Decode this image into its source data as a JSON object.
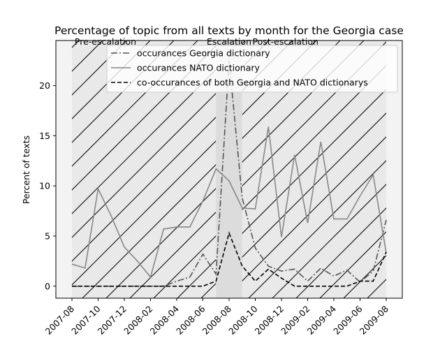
{
  "chart_data": {
    "type": "line",
    "title": "Percentage of topic from all texts by month for the Georgia case",
    "xlabel": "",
    "ylabel": "Percent of texts",
    "ylim": [
      -1.2,
      24.5
    ],
    "yticks": [
      0,
      5,
      10,
      15,
      20
    ],
    "xticks": [
      "2007-08",
      "2007-10",
      "2007-12",
      "2008-02",
      "2008-04",
      "2008-06",
      "2008-08",
      "2008-10",
      "2008-12",
      "2009-02",
      "2009-04",
      "2009-06",
      "2009-08"
    ],
    "x": [
      "2007-08",
      "2007-09",
      "2007-10",
      "2007-11",
      "2007-12",
      "2008-01",
      "2008-02",
      "2008-03",
      "2008-04",
      "2008-05",
      "2008-06",
      "2008-07",
      "2008-08",
      "2008-09",
      "2008-10",
      "2008-11",
      "2008-12",
      "2009-01",
      "2009-02",
      "2009-03",
      "2009-04",
      "2009-05",
      "2009-06",
      "2009-07",
      "2009-08"
    ],
    "periods": [
      {
        "label": "Pre-escalation",
        "start": "2007-08",
        "end": "2008-07",
        "style": "hatched"
      },
      {
        "label": "Escalation",
        "start": "2008-07",
        "end": "2008-09",
        "style": "shaded"
      },
      {
        "label": "Post-escalation",
        "start": "2008-09",
        "end": "2009-08",
        "style": "hatched"
      }
    ],
    "series": [
      {
        "name": "occurances Georgia dictionary",
        "style": "dashdot",
        "color": "#555555",
        "values": [
          0,
          0,
          0,
          0,
          0,
          0,
          0,
          0,
          0.5,
          0.9,
          3.2,
          1.2,
          22.5,
          8.8,
          3.8,
          2.0,
          1.5,
          1.7,
          0.5,
          1.8,
          1.0,
          1.6,
          0.4,
          1.5,
          6.6
        ]
      },
      {
        "name": "occurances NATO dictionary",
        "style": "solid",
        "color": "#888888",
        "values": [
          2.2,
          1.8,
          9.7,
          7.0,
          3.9,
          2.5,
          0.9,
          5.7,
          5.9,
          5.9,
          8.5,
          11.7,
          10.5,
          7.8,
          7.7,
          15.9,
          4.9,
          13.1,
          6.3,
          14.4,
          6.7,
          6.7,
          9.0,
          11.1,
          3.3
        ]
      },
      {
        "name": "co-occurances of both Georgia and NATO dictionarys",
        "style": "dashed",
        "color": "#000000",
        "values": [
          0,
          0,
          0,
          0,
          0,
          0,
          0,
          0,
          0,
          0,
          0,
          0.5,
          5.3,
          2.0,
          0.5,
          1.7,
          0.8,
          0,
          0,
          0,
          0,
          0,
          0.5,
          0.5,
          3.4
        ]
      }
    ],
    "grid": false,
    "legend_position": "upper right"
  }
}
